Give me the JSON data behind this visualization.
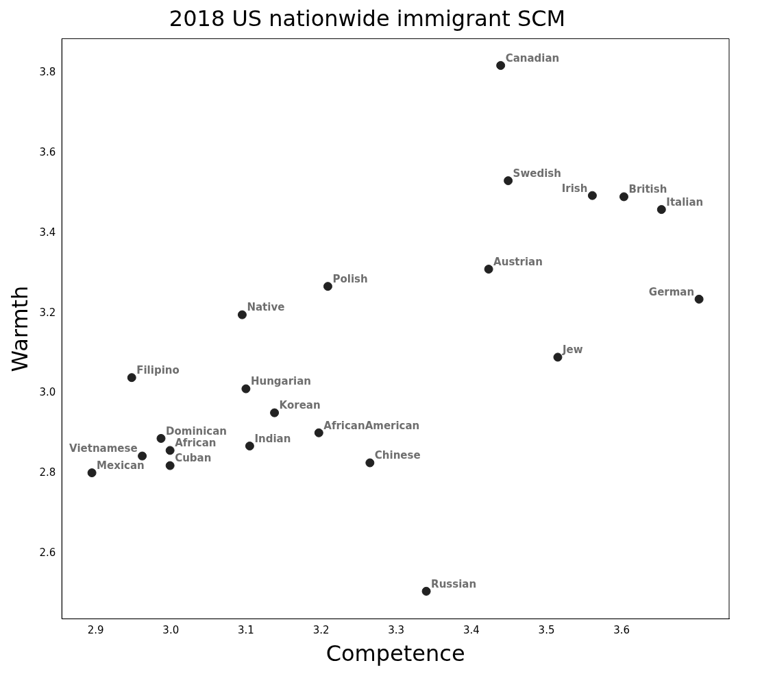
{
  "chart_data": {
    "type": "scatter",
    "title": "2018 US nationwide immigrant SCM",
    "xlabel": "Competence",
    "ylabel": "Warmth",
    "x": [
      3.439,
      3.449,
      3.561,
      3.603,
      3.653,
      3.423,
      3.703,
      3.209,
      3.095,
      3.515,
      2.948,
      3.1,
      3.138,
      3.197,
      2.987,
      3.105,
      2.999,
      2.962,
      2.999,
      2.895,
      3.265,
      3.34
    ],
    "values": [
      3.819,
      3.531,
      3.494,
      3.491,
      3.459,
      3.31,
      3.235,
      3.267,
      3.196,
      3.09,
      3.039,
      3.011,
      2.951,
      2.901,
      2.887,
      2.868,
      2.857,
      2.843,
      2.819,
      2.801,
      2.826,
      2.505
    ],
    "color": "#222222",
    "marker": "circle",
    "grid": false,
    "legend": false,
    "xlim": [
      2.855,
      3.743
    ],
    "xticks": [
      {
        "value": 2.9,
        "label": "2.9"
      },
      {
        "value": 3.0,
        "label": "3.0"
      },
      {
        "value": 3.1,
        "label": "3.1"
      },
      {
        "value": 3.2,
        "label": "3.2"
      },
      {
        "value": 3.3,
        "label": "3.3"
      },
      {
        "value": 3.4,
        "label": "3.4"
      },
      {
        "value": 3.5,
        "label": "3.5"
      },
      {
        "value": 3.6,
        "label": "3.6"
      }
    ],
    "ylim": [
      2.436,
      3.886
    ],
    "yticks": [
      {
        "value": 2.6,
        "label": "2.6"
      },
      {
        "value": 2.8,
        "label": "2.8"
      },
      {
        "value": 3.0,
        "label": "3.0"
      },
      {
        "value": 3.2,
        "label": "3.2"
      },
      {
        "value": 3.4,
        "label": "3.4"
      },
      {
        "value": 3.6,
        "label": "3.6"
      },
      {
        "value": 3.8,
        "label": "3.8"
      }
    ],
    "annotations": [
      {
        "text": "Canadian",
        "x": 3.439,
        "y": 3.819
      },
      {
        "text": "Swedish",
        "x": 3.449,
        "y": 3.531
      },
      {
        "text": "Irish",
        "x": 3.561,
        "y": 3.494
      },
      {
        "text": "British",
        "x": 3.603,
        "y": 3.491
      },
      {
        "text": "Italian",
        "x": 3.653,
        "y": 3.459
      },
      {
        "text": "Austrian",
        "x": 3.423,
        "y": 3.31
      },
      {
        "text": "German",
        "x": 3.703,
        "y": 3.235
      },
      {
        "text": "Polish",
        "x": 3.209,
        "y": 3.267
      },
      {
        "text": "Native",
        "x": 3.095,
        "y": 3.196
      },
      {
        "text": "Jew",
        "x": 3.515,
        "y": 3.09
      },
      {
        "text": "Filipino",
        "x": 2.948,
        "y": 3.039
      },
      {
        "text": "Hungarian",
        "x": 3.1,
        "y": 3.011
      },
      {
        "text": "Korean",
        "x": 3.138,
        "y": 2.951
      },
      {
        "text": "AfricanAmerican",
        "x": 3.197,
        "y": 2.901
      },
      {
        "text": "Dominican",
        "x": 2.987,
        "y": 2.887
      },
      {
        "text": "Indian",
        "x": 3.105,
        "y": 2.868
      },
      {
        "text": "African",
        "x": 2.999,
        "y": 2.857
      },
      {
        "text": "Vietnamese",
        "x": 2.962,
        "y": 2.843
      },
      {
        "text": "Cuban",
        "x": 2.999,
        "y": 2.819
      },
      {
        "text": "Mexican",
        "x": 2.895,
        "y": 2.801
      },
      {
        "text": "Chinese",
        "x": 3.265,
        "y": 2.826
      },
      {
        "text": "Russian",
        "x": 3.34,
        "y": 2.505
      }
    ]
  }
}
